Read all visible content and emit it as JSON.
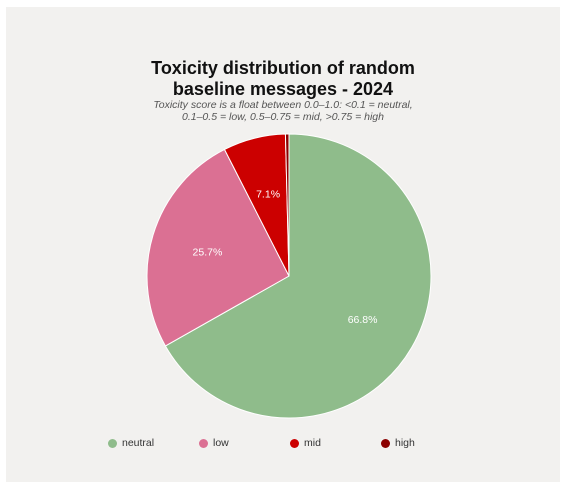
{
  "chart_data": {
    "type": "pie",
    "title": "Toxicity distribution of random baseline messages - 2024",
    "subtitle": "Toxicity score is a float between 0.0–1.0: <0.1 = neutral, 0.1–0.5 = low, 0.5–0.75 = mid, >0.75 = high",
    "categories": [
      "neutral",
      "low",
      "mid",
      "high"
    ],
    "values": [
      66.8,
      25.7,
      7.1,
      0.4
    ],
    "labels": [
      "66.8%",
      "25.7%",
      "7.1%",
      ""
    ],
    "colors": [
      "#8fbc8b",
      "#db7093",
      "#cc0000",
      "#8b0000"
    ],
    "legend_position": "bottom"
  }
}
